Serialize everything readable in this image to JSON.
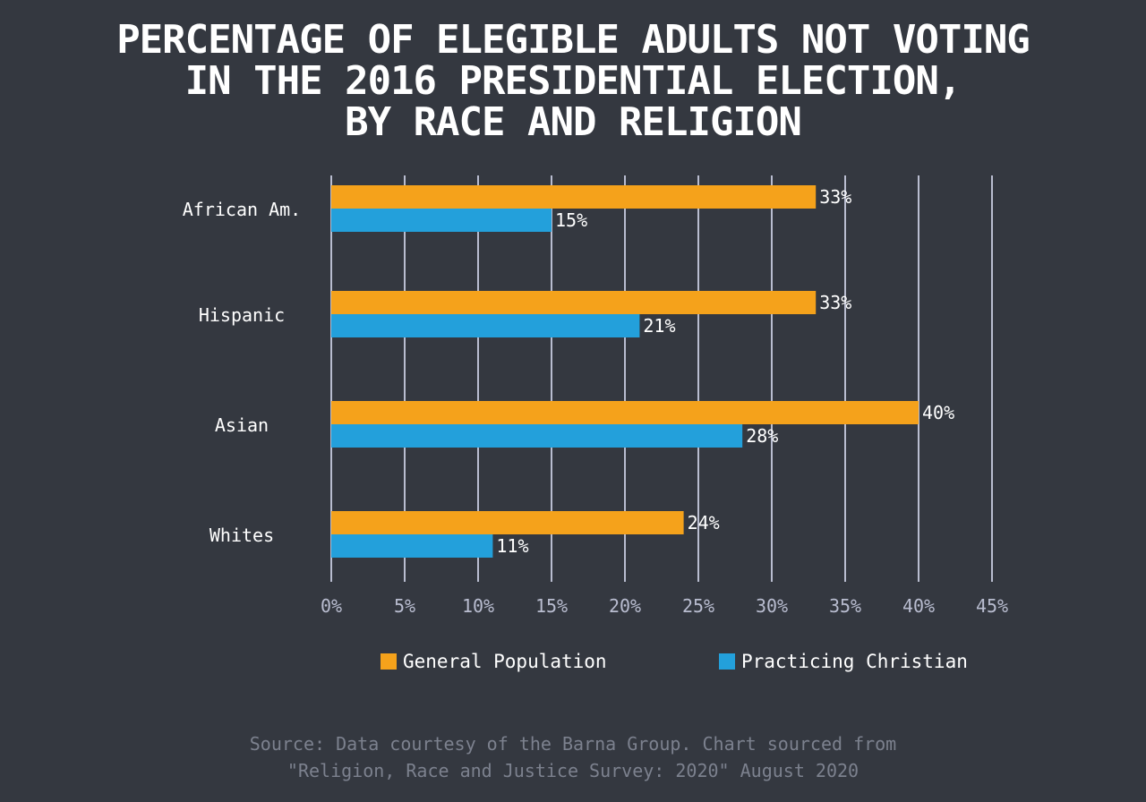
{
  "title_lines": [
    "PERCENTAGE OF ELEGIBLE ADULTS NOT VOTING",
    "IN THE 2016 PRESIDENTIAL ELECTION,",
    "BY RACE AND RELIGION"
  ],
  "source_lines": [
    "Source: Data courtesy of the Barna Group. Chart sourced from",
    "\"Religion, Race and Justice Survey: 2020\" August 2020"
  ],
  "colors": {
    "background": "#343840",
    "general_population": "#f5a21b",
    "practicing_christian": "#23a0db",
    "grid": "#b9bdd0",
    "axis_text": "#b9bdd0",
    "text": "#ffffff",
    "source_text": "#7c818e"
  },
  "chart_data": {
    "type": "bar",
    "orientation": "horizontal",
    "categories": [
      "African Am.",
      "Hispanic",
      "Asian",
      "Whites"
    ],
    "series": [
      {
        "name": "General Population",
        "values": [
          33,
          33,
          40,
          24
        ],
        "labels": [
          "33%",
          "33%",
          "40%",
          "24%"
        ]
      },
      {
        "name": "Practicing Christian",
        "values": [
          15,
          21,
          28,
          11
        ],
        "labels": [
          "15%",
          "21%",
          "28%",
          "11%"
        ]
      }
    ],
    "xlim": [
      0,
      45
    ],
    "x_ticks": [
      0,
      5,
      10,
      15,
      20,
      25,
      30,
      35,
      40,
      45
    ],
    "x_tick_labels": [
      "0%",
      "5%",
      "10%",
      "15%",
      "20%",
      "25%",
      "30%",
      "35%",
      "40%",
      "45%"
    ],
    "grid": true,
    "legend_position": "bottom"
  }
}
